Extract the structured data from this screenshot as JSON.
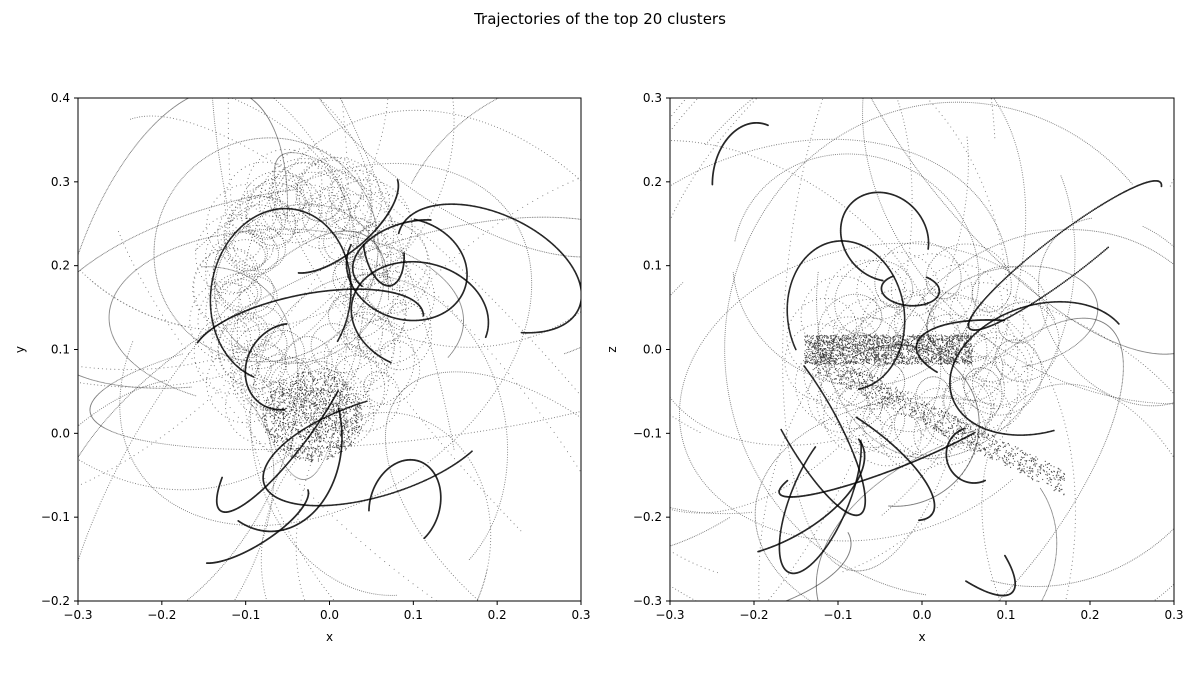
{
  "chart_data": {
    "suptitle": "Trajectories of the top 20 clusters",
    "point_color": "#000000",
    "grid": false,
    "legend": "none",
    "panels": [
      {
        "type": "scatter",
        "xlabel": "x",
        "ylabel": "y",
        "xlim": [
          -0.3,
          0.3
        ],
        "ylim": [
          -0.2,
          0.4
        ],
        "xticks": [
          -0.3,
          -0.2,
          -0.1,
          0.0,
          0.1,
          0.2,
          0.3
        ],
        "xtick_labels": [
          "−0.3",
          "−0.2",
          "−0.1",
          "0.0",
          "0.1",
          "0.2",
          "0.3"
        ],
        "yticks": [
          -0.2,
          -0.1,
          0.0,
          0.1,
          0.2,
          0.3,
          0.4
        ],
        "ytick_labels": [
          "−0.2",
          "−0.1",
          "0.0",
          "0.1",
          "0.2",
          "0.3",
          "0.4"
        ]
      },
      {
        "type": "scatter",
        "xlabel": "x",
        "ylabel": "z",
        "xlim": [
          -0.3,
          0.3
        ],
        "ylim": [
          -0.3,
          0.3
        ],
        "xticks": [
          -0.3,
          -0.2,
          -0.1,
          0.0,
          0.1,
          0.2,
          0.3
        ],
        "xtick_labels": [
          "−0.3",
          "−0.2",
          "−0.1",
          "0.0",
          "0.1",
          "0.2",
          "0.3"
        ],
        "yticks": [
          -0.3,
          -0.2,
          -0.1,
          0.0,
          0.1,
          0.2,
          0.3
        ],
        "ytick_labels": [
          "−0.3",
          "−0.2",
          "−0.1",
          "0.0",
          "0.1",
          "0.2",
          "0.3"
        ]
      }
    ]
  }
}
